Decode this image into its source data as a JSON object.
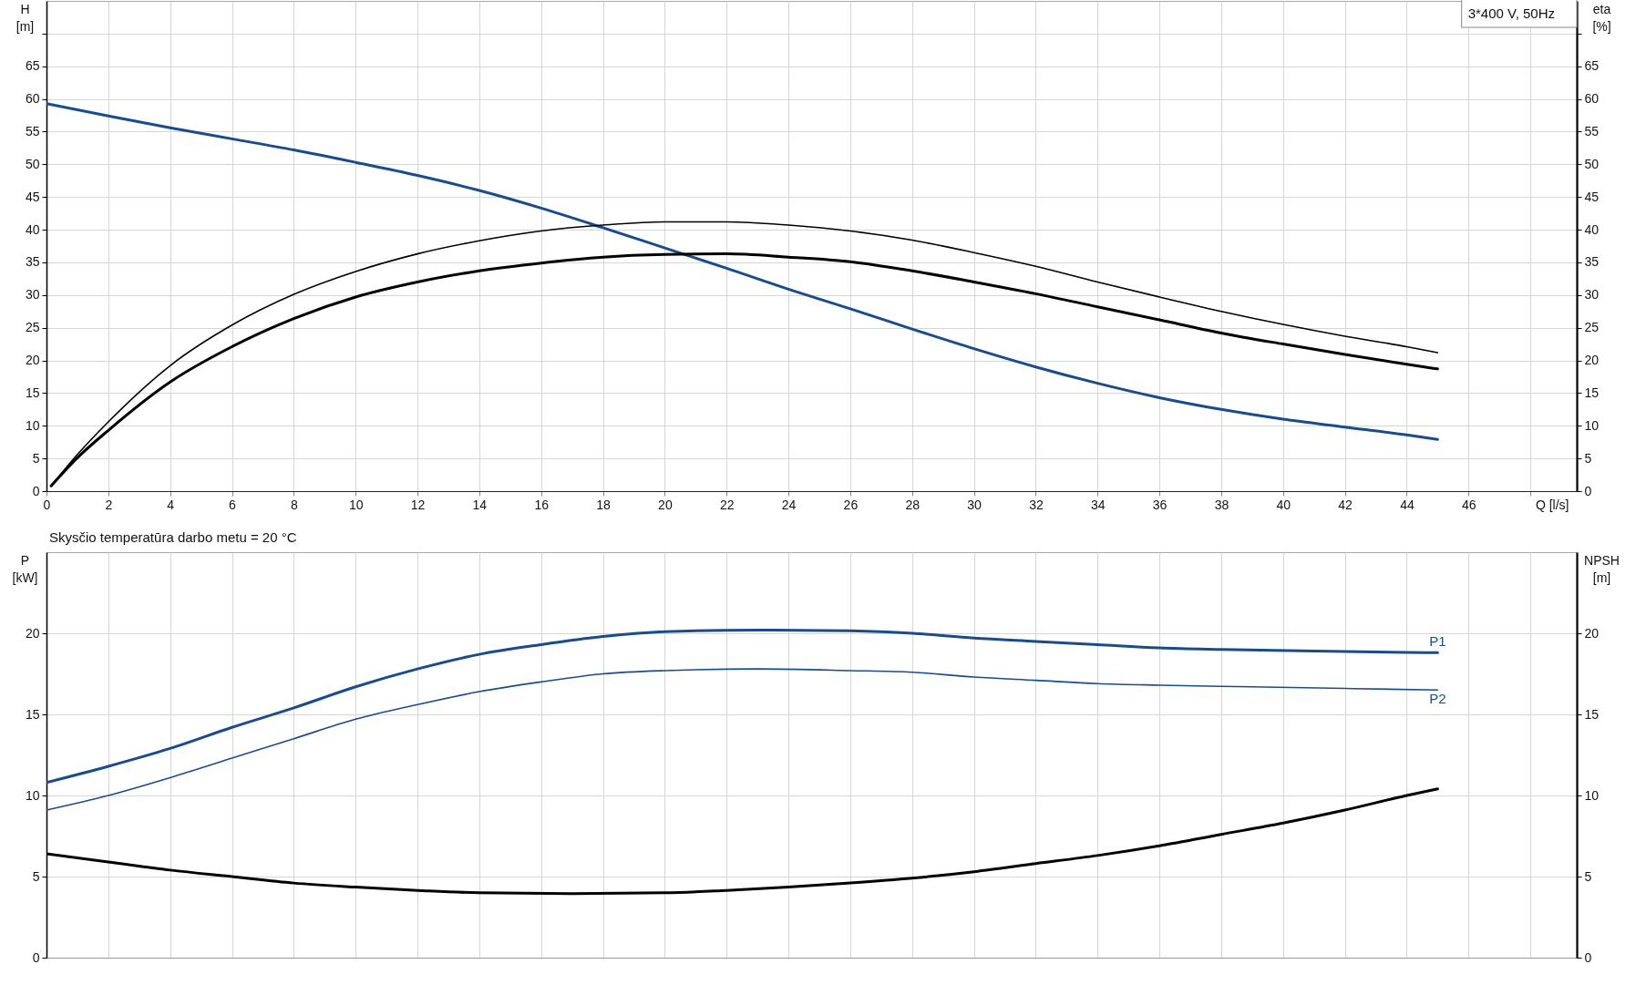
{
  "chart_data": [
    {
      "type": "line",
      "title": "3*400 V, 50Hz",
      "xlabel": "Q [l/s]",
      "ylabel": "H [m]",
      "y2label": "eta [%]",
      "xlim": [
        0,
        49.5
      ],
      "xticks": [
        0,
        2,
        4,
        6,
        8,
        10,
        12,
        14,
        16,
        18,
        20,
        22,
        24,
        26,
        28,
        30,
        32,
        34,
        36,
        38,
        40,
        42,
        44,
        46,
        {
          "value": 48,
          "label": null
        }
      ],
      "ylim": [
        0,
        75
      ],
      "yticks": [
        0,
        5,
        10,
        15,
        20,
        25,
        30,
        35,
        40,
        45,
        50,
        55,
        60,
        65,
        {
          "value": 70,
          "label": null
        }
      ],
      "y2lim": [
        0,
        75
      ],
      "y2ticks": [
        0,
        5,
        10,
        15,
        20,
        25,
        30,
        35,
        40,
        45,
        50,
        55,
        60,
        65,
        {
          "value": 70,
          "label": null
        }
      ],
      "grid": true,
      "series": [
        {
          "color": "#1a4c8b",
          "x": [
            0,
            2,
            4,
            6,
            8,
            10,
            12,
            14,
            16,
            18,
            20,
            22,
            24,
            26,
            28,
            30,
            32,
            34,
            36,
            38,
            40,
            42,
            44,
            45
          ],
          "values": [
            59.3,
            57.4,
            55.6,
            53.9,
            52.2,
            50.3,
            48.3,
            46.0,
            43.3,
            40.3,
            37.2,
            34.1,
            30.9,
            27.9,
            24.8,
            21.8,
            19.0,
            16.5,
            14.3,
            12.5,
            11.0,
            9.8,
            8.6,
            7.9
          ]
        },
        {
          "color": "#000000",
          "axis": "y2",
          "x": [
            0.15,
            1,
            2,
            4,
            6,
            8,
            10,
            12,
            14,
            16,
            18,
            20,
            22,
            24,
            26,
            28,
            30,
            32,
            34,
            36,
            38,
            40,
            42,
            44,
            45
          ],
          "values": [
            0.8,
            5.6,
            10.6,
            19.2,
            25.4,
            30.1,
            33.6,
            36.3,
            38.3,
            39.8,
            40.7,
            41.2,
            41.2,
            40.7,
            39.8,
            38.4,
            36.5,
            34.4,
            32.0,
            29.7,
            27.5,
            25.5,
            23.7,
            22.1,
            21.2
          ]
        },
        {
          "color": "#000000",
          "axis": "y2",
          "x": [
            0.15,
            1,
            2,
            4,
            6,
            8,
            10,
            12,
            14,
            16,
            18,
            20,
            22,
            24,
            26,
            28,
            30,
            32,
            34,
            36,
            38,
            40,
            42,
            44,
            45
          ],
          "values": [
            0.8,
            5.1,
            9.3,
            16.7,
            22.1,
            26.4,
            29.7,
            32.0,
            33.7,
            34.9,
            35.8,
            36.2,
            36.3,
            35.8,
            35.1,
            33.7,
            32.0,
            30.2,
            28.2,
            26.2,
            24.2,
            22.5,
            20.9,
            19.4,
            18.7
          ]
        }
      ]
    },
    {
      "type": "line",
      "title": "Skysčio temperatūra darbo metu = 20 °C",
      "ylabel": "P [kW]",
      "y2label": "NPSH [m]",
      "xlim": [
        0,
        49.5
      ],
      "xticks": [
        0,
        2,
        4,
        6,
        8,
        10,
        12,
        14,
        16,
        18,
        20,
        22,
        24,
        26,
        28,
        30,
        32,
        34,
        36,
        38,
        40,
        42,
        44,
        46,
        48
      ],
      "ylim": [
        0,
        25
      ],
      "yticks": [
        0,
        5,
        10,
        15,
        20
      ],
      "y2lim": [
        0,
        25
      ],
      "y2ticks": [
        0,
        5,
        10,
        15,
        20
      ],
      "grid": true,
      "tick_labels": "y",
      "series": [
        {
          "name": "P1",
          "color": "#1a4c8b",
          "x": [
            0,
            2,
            4,
            6,
            8,
            10,
            12,
            14,
            16,
            18,
            20,
            23,
            26,
            28,
            30,
            32,
            34,
            36,
            38,
            41,
            45
          ],
          "values": [
            10.8,
            11.8,
            12.9,
            14.2,
            15.4,
            16.7,
            17.8,
            18.7,
            19.3,
            19.8,
            20.1,
            20.2,
            20.15,
            20.0,
            19.7,
            19.5,
            19.3,
            19.1,
            19.0,
            18.9,
            18.8
          ]
        },
        {
          "name": "P2",
          "color": "#1a4c8b",
          "x": [
            0,
            2,
            4,
            6,
            8,
            10,
            12,
            14,
            16,
            18,
            20,
            23,
            26,
            28,
            30,
            32,
            34,
            36,
            39,
            42,
            45
          ],
          "values": [
            9.1,
            10.0,
            11.1,
            12.3,
            13.5,
            14.7,
            15.6,
            16.4,
            17.0,
            17.5,
            17.7,
            17.8,
            17.7,
            17.6,
            17.3,
            17.1,
            16.9,
            16.8,
            16.7,
            16.6,
            16.5
          ]
        },
        {
          "color": "#000000",
          "axis": "y2",
          "x": [
            0,
            2,
            4,
            6,
            8,
            10,
            12,
            14,
            17,
            20,
            22,
            24,
            26,
            28,
            30,
            32,
            34,
            36,
            38,
            40,
            42,
            44,
            45
          ],
          "values": [
            6.4,
            5.9,
            5.4,
            5.0,
            4.6,
            4.35,
            4.15,
            4.0,
            3.95,
            4.0,
            4.15,
            4.35,
            4.6,
            4.9,
            5.3,
            5.8,
            6.3,
            6.9,
            7.6,
            8.3,
            9.1,
            10.0,
            10.4
          ]
        }
      ]
    }
  ]
}
